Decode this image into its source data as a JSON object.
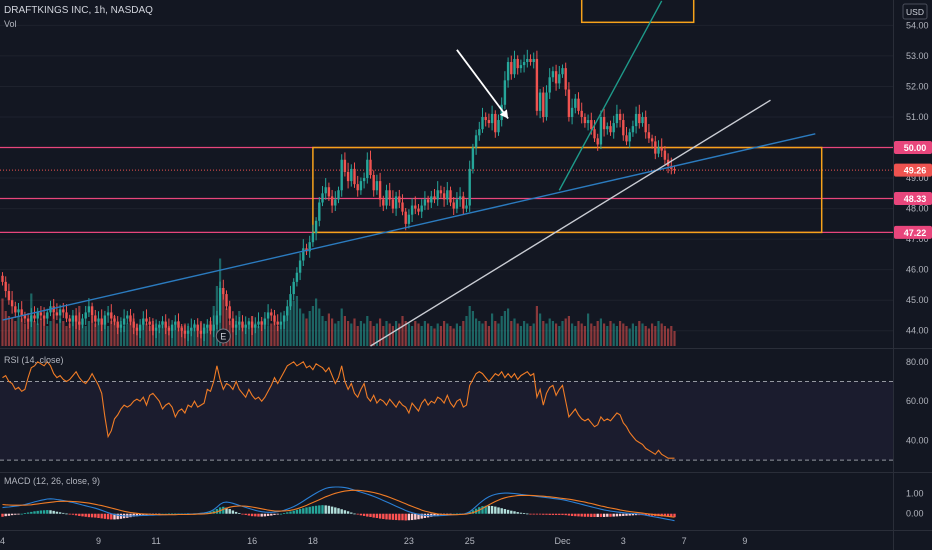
{
  "header": {
    "symbol_line": "DRAFTKINGS INC, 1h, NASDAQ",
    "volume_label": "Vol"
  },
  "currency": "USD",
  "colors": {
    "bg": "#131722",
    "up": "#26a69a",
    "down": "#ef5350",
    "trend_blue": "#2b7bbf",
    "trend_white": "#c9ccd3",
    "channel_teal": "#1e9a8a",
    "box_orange": "#f7a21b",
    "level_pink": "#e8467c",
    "rsi_line": "#f07c26",
    "macd_line": "#2a7fd4",
    "signal_line": "#f07c26"
  },
  "chart_data": [
    {
      "type": "candlestick",
      "symbol": "DRAFTKINGS INC",
      "interval": "1h",
      "exchange": "NASDAQ",
      "y_axis": {
        "min": 43.5,
        "max": 54.7,
        "ticks": [
          44.0,
          45.0,
          46.0,
          47.0,
          48.0,
          49.0,
          50.0,
          51.0,
          52.0,
          53.0,
          54.0
        ],
        "tick_labels": [
          "44.00",
          "45.00",
          "46.00",
          "47.00",
          "48.00",
          "49.00",
          "50.00",
          "51.00",
          "52.00",
          "53.00",
          "54.00"
        ]
      },
      "x_axis": {
        "tick_labels": [
          "4",
          "9",
          "11",
          "16",
          "18",
          "23",
          "25",
          "Dec",
          "3",
          "7",
          "9"
        ],
        "tick_bars": [
          0,
          30,
          48,
          78,
          97,
          127,
          146,
          175,
          194,
          213,
          232
        ]
      },
      "closes": [
        45.6,
        45.3,
        45.0,
        44.8,
        44.6,
        44.7,
        44.5,
        44.4,
        44.3,
        44.5,
        44.4,
        44.6,
        44.5,
        44.4,
        44.6,
        44.8,
        44.6,
        44.5,
        44.7,
        44.6,
        44.4,
        44.3,
        44.5,
        44.3,
        44.2,
        44.4,
        44.6,
        44.8,
        44.5,
        44.3,
        44.4,
        44.2,
        44.5,
        44.6,
        44.4,
        44.3,
        44.1,
        44.2,
        44.4,
        44.5,
        44.3,
        44.1,
        44.0,
        44.2,
        44.4,
        44.3,
        44.2,
        44.0,
        44.1,
        44.2,
        44.3,
        44.1,
        44.0,
        44.2,
        44.3,
        44.1,
        44.0,
        43.9,
        44.0,
        44.1,
        44.2,
        44.0,
        43.9,
        44.1,
        44.2,
        44.0,
        44.2,
        44.5,
        45.4,
        45.2,
        44.8,
        44.4,
        44.1,
        44.2,
        44.3,
        44.1,
        44.2,
        44.3,
        44.1,
        44.2,
        44.3,
        44.2,
        44.4,
        44.6,
        44.5,
        44.3,
        44.2,
        44.3,
        44.5,
        44.8,
        45.2,
        45.6,
        45.9,
        46.3,
        46.7,
        46.6,
        46.9,
        47.2,
        47.6,
        48.2,
        48.5,
        48.7,
        48.4,
        48.1,
        48.3,
        48.6,
        49.6,
        49.2,
        48.9,
        49.3,
        48.8,
        48.6,
        48.9,
        49.0,
        49.6,
        49.1,
        48.6,
        48.9,
        48.3,
        48.1,
        48.6,
        48.3,
        48.0,
        48.4,
        48.2,
        47.9,
        47.5,
        47.8,
        48.1,
        48.0,
        47.9,
        48.1,
        48.3,
        48.2,
        48.4,
        48.3,
        48.6,
        48.5,
        48.3,
        48.6,
        48.2,
        48.0,
        48.3,
        48.4,
        48.0,
        48.1,
        49.3,
        50.0,
        50.4,
        50.6,
        51.0,
        50.9,
        50.8,
        51.1,
        50.5,
        50.9,
        51.4,
        52.2,
        52.8,
        52.4,
        52.9,
        52.6,
        52.7,
        52.8,
        52.9,
        52.8,
        52.9,
        51.2,
        51.8,
        51.0,
        51.8,
        52.3,
        52.5,
        52.1,
        52.4,
        52.6,
        51.9,
        51.0,
        51.3,
        51.6,
        51.2,
        51.0,
        50.8,
        50.9,
        50.6,
        50.3,
        50.1,
        51.0,
        50.6,
        50.7,
        50.5,
        50.8,
        51.1,
        50.9,
        50.4,
        50.2,
        50.5,
        50.7,
        51.1,
        50.8,
        51.0,
        50.5,
        50.3,
        50.2,
        49.8,
        50.0,
        49.9,
        49.6,
        49.4,
        49.3,
        49.26
      ],
      "volumes": [
        1.9,
        1.4,
        1.2,
        1.1,
        1.0,
        1.2,
        1.1,
        0.9,
        1.0,
        2.1,
        1.0,
        0.9,
        1.1,
        1.2,
        0.8,
        1.0,
        1.3,
        0.9,
        1.1,
        1.0,
        0.8,
        0.9,
        1.0,
        1.1,
        1.6,
        0.9,
        0.8,
        1.0,
        1.2,
        0.9,
        1.0,
        1.1,
        0.9,
        0.8,
        1.0,
        1.2,
        0.9,
        1.0,
        0.8,
        0.9,
        1.0,
        1.1,
        0.9,
        0.8,
        1.0,
        0.9,
        0.8,
        1.0,
        0.9,
        0.8,
        1.0,
        0.9,
        0.8,
        0.7,
        0.9,
        1.0,
        0.8,
        0.9,
        0.8,
        0.7,
        0.9,
        0.8,
        1.0,
        0.9,
        0.8,
        1.0,
        1.6,
        2.4,
        3.5,
        2.2,
        1.5,
        1.0,
        0.9,
        1.0,
        1.4,
        0.9,
        0.8,
        1.0,
        1.2,
        0.9,
        0.8,
        1.0,
        0.9,
        0.8,
        0.9,
        1.0,
        0.8,
        0.9,
        1.2,
        1.4,
        1.7,
        1.8,
        2.0,
        1.5,
        1.3,
        1.1,
        1.4,
        1.6,
        1.9,
        1.5,
        1.2,
        1.0,
        1.3,
        1.1,
        0.9,
        1.0,
        1.5,
        1.2,
        1.0,
        0.9,
        1.1,
        0.8,
        1.0,
        0.9,
        1.2,
        1.0,
        0.8,
        0.9,
        1.1,
        0.8,
        1.0,
        0.9,
        0.8,
        1.0,
        0.9,
        1.2,
        1.0,
        0.9,
        0.8,
        1.0,
        0.9,
        0.8,
        1.0,
        0.9,
        0.8,
        0.7,
        0.9,
        0.8,
        1.0,
        0.9,
        0.8,
        0.7,
        0.9,
        0.8,
        1.0,
        1.2,
        1.6,
        1.4,
        1.1,
        1.0,
        0.9,
        1.0,
        0.8,
        1.3,
        1.0,
        0.9,
        1.2,
        1.4,
        1.5,
        1.0,
        1.1,
        0.9,
        0.8,
        1.0,
        0.9,
        0.8,
        0.9,
        1.6,
        1.3,
        1.0,
        0.9,
        1.1,
        1.0,
        0.9,
        0.8,
        1.0,
        1.1,
        1.2,
        0.9,
        0.8,
        1.0,
        0.9,
        0.8,
        1.3,
        0.9,
        0.8,
        1.0,
        1.1,
        0.9,
        0.8,
        1.0,
        0.9,
        0.8,
        1.0,
        0.9,
        0.8,
        0.7,
        0.9,
        0.8,
        1.0,
        0.9,
        0.8,
        0.7,
        0.9,
        0.8,
        1.0,
        0.9,
        0.8,
        0.7,
        0.8,
        0.6
      ],
      "horizontal_levels": [
        {
          "value": 50.0,
          "label": "50.00"
        },
        {
          "value": 48.33,
          "label": "48.33"
        },
        {
          "value": 47.22,
          "label": "47.22"
        }
      ],
      "last_price": {
        "value": 49.26,
        "label": "49.26"
      },
      "rectangles": [
        {
          "bar_start": 97,
          "bar_end": 256,
          "price_top": 50.0,
          "price_bottom": 47.22
        },
        {
          "bar_start": 181,
          "bar_end": 216,
          "price_top": 55.0,
          "price_bottom": 54.1
        }
      ],
      "trendlines": [
        {
          "name": "blue",
          "from": {
            "bar": 0,
            "price": 44.35
          },
          "to": {
            "bar": 254,
            "price": 50.45
          }
        },
        {
          "name": "white",
          "from": {
            "bar": 115,
            "price": 43.5
          },
          "to": {
            "bar": 240,
            "price": 51.55
          }
        },
        {
          "name": "teal",
          "from": {
            "bar": 174,
            "price": 48.6
          },
          "to": {
            "bar": 206,
            "price": 54.8
          }
        },
        {
          "name": "arrow",
          "from": {
            "bar": 142,
            "price": 53.2
          },
          "to": {
            "bar": 158,
            "price": 50.95
          }
        }
      ],
      "earnings_marker": {
        "bar": 69,
        "price": 43.8,
        "label": "E"
      }
    },
    {
      "type": "line",
      "title": "RSI (14, close)",
      "y_axis": {
        "min": 25,
        "max": 85,
        "ticks": [
          40,
          60,
          80
        ],
        "tick_labels": [
          "40.00",
          "60.00",
          "80.00"
        ]
      },
      "bands": {
        "upper": 70,
        "lower": 30
      },
      "values": [
        72,
        73,
        70,
        69,
        66,
        67,
        65,
        66,
        72,
        77,
        78,
        80,
        79,
        78,
        80,
        78,
        74,
        72,
        73,
        71,
        70,
        71,
        73,
        75,
        72,
        70,
        69,
        71,
        74,
        71,
        68,
        64,
        52,
        42,
        45,
        51,
        53,
        56,
        58,
        57,
        58,
        60,
        61,
        60,
        62,
        58,
        63,
        64,
        62,
        60,
        56,
        58,
        59,
        57,
        52,
        55,
        56,
        54,
        58,
        57,
        60,
        57,
        58,
        59,
        66,
        65,
        70,
        78,
        71,
        66,
        69,
        68,
        66,
        70,
        66,
        64,
        62,
        66,
        63,
        61,
        62,
        60,
        62,
        65,
        68,
        72,
        69,
        72,
        75,
        78,
        79,
        80,
        78,
        79,
        80,
        77,
        78,
        76,
        79,
        78,
        77,
        75,
        77,
        73,
        69,
        72,
        78,
        70,
        66,
        69,
        64,
        62,
        66,
        69,
        62,
        60,
        63,
        59,
        61,
        60,
        58,
        61,
        59,
        57,
        60,
        58,
        57,
        54,
        59,
        57,
        55,
        59,
        61,
        58,
        60,
        59,
        62,
        61,
        59,
        63,
        59,
        57,
        60,
        61,
        57,
        58,
        68,
        71,
        74,
        75,
        74,
        72,
        70,
        72,
        74,
        73,
        75,
        72,
        74,
        72,
        74,
        71,
        73,
        74,
        75,
        73,
        74,
        62,
        66,
        58,
        64,
        67,
        68,
        63,
        66,
        68,
        60,
        52,
        54,
        56,
        53,
        51,
        50,
        51,
        49,
        47,
        48,
        52,
        50,
        51,
        50,
        52,
        54,
        53,
        49,
        47,
        44,
        42,
        40,
        39,
        38,
        36,
        35,
        34,
        33,
        35,
        33,
        32,
        31,
        31,
        31
      ]
    },
    {
      "type": "line",
      "title": "MACD (12, 26, close, 9)",
      "y_axis": {
        "min": -0.7,
        "max": 1.85,
        "ticks": [
          0,
          1
        ],
        "tick_labels": [
          "0.00",
          "1.00"
        ]
      },
      "series": [
        {
          "name": "MACD",
          "values": [
            0.3,
            0.32,
            0.33,
            0.35,
            0.37,
            0.39,
            0.42,
            0.45,
            0.49,
            0.53,
            0.58,
            0.62,
            0.66,
            0.69,
            0.72,
            0.73,
            0.72,
            0.7,
            0.68,
            0.65,
            0.62,
            0.58,
            0.55,
            0.51,
            0.47,
            0.43,
            0.39,
            0.35,
            0.31,
            0.27,
            0.22,
            0.17,
            0.11,
            0.05,
            0.0,
            -0.04,
            -0.07,
            -0.09,
            -0.1,
            -0.11,
            -0.11,
            -0.1,
            -0.1,
            -0.09,
            -0.08,
            -0.08,
            -0.07,
            -0.07,
            -0.06,
            -0.06,
            -0.05,
            -0.05,
            -0.04,
            -0.04,
            -0.04,
            -0.03,
            -0.03,
            -0.03,
            -0.02,
            -0.02,
            -0.01,
            0.0,
            0.02,
            0.04,
            0.07,
            0.12,
            0.2,
            0.32,
            0.46,
            0.55,
            0.57,
            0.55,
            0.51,
            0.46,
            0.41,
            0.36,
            0.31,
            0.26,
            0.21,
            0.17,
            0.13,
            0.1,
            0.08,
            0.07,
            0.07,
            0.08,
            0.1,
            0.13,
            0.17,
            0.22,
            0.28,
            0.35,
            0.43,
            0.52,
            0.62,
            0.72,
            0.82,
            0.92,
            1.01,
            1.1,
            1.18,
            1.24,
            1.28,
            1.3,
            1.31,
            1.31,
            1.3,
            1.28,
            1.25,
            1.21,
            1.16,
            1.11,
            1.06,
            1.01,
            0.96,
            0.91,
            0.85,
            0.79,
            0.72,
            0.65,
            0.58,
            0.51,
            0.44,
            0.37,
            0.3,
            0.23,
            0.16,
            0.1,
            0.05,
            0.01,
            -0.03,
            -0.06,
            -0.08,
            -0.09,
            -0.1,
            -0.1,
            -0.1,
            -0.09,
            -0.08,
            -0.07,
            -0.06,
            -0.05,
            -0.04,
            -0.03,
            -0.02,
            0.02,
            0.1,
            0.22,
            0.36,
            0.5,
            0.63,
            0.74,
            0.83,
            0.9,
            0.95,
            0.98,
            1.0,
            1.01,
            1.01,
            1.0,
            0.99,
            0.97,
            0.95,
            0.93,
            0.91,
            0.89,
            0.87,
            0.85,
            0.83,
            0.81,
            0.79,
            0.77,
            0.75,
            0.73,
            0.71,
            0.69,
            0.66,
            0.62,
            0.58,
            0.54,
            0.5,
            0.46,
            0.42,
            0.38,
            0.34,
            0.3,
            0.26,
            0.22,
            0.19,
            0.16,
            0.13,
            0.11,
            0.09,
            0.07,
            0.05,
            0.03,
            0.02,
            0.01,
            0.0,
            -0.02,
            -0.04,
            -0.07,
            -0.1,
            -0.13,
            -0.16,
            -0.19,
            -0.22,
            -0.25,
            -0.28,
            -0.31,
            -0.34
          ]
        },
        {
          "name": "Signal",
          "values": [
            0.45,
            0.44,
            0.43,
            0.42,
            0.42,
            0.42,
            0.42,
            0.42,
            0.43,
            0.44,
            0.46,
            0.48,
            0.5,
            0.52,
            0.54,
            0.56,
            0.58,
            0.6,
            0.61,
            0.61,
            0.61,
            0.61,
            0.6,
            0.59,
            0.58,
            0.56,
            0.54,
            0.52,
            0.49,
            0.46,
            0.43,
            0.4,
            0.36,
            0.32,
            0.28,
            0.24,
            0.2,
            0.16,
            0.12,
            0.09,
            0.06,
            0.04,
            0.02,
            0.0,
            -0.01,
            -0.02,
            -0.03,
            -0.04,
            -0.04,
            -0.05,
            -0.05,
            -0.05,
            -0.05,
            -0.05,
            -0.05,
            -0.04,
            -0.04,
            -0.04,
            -0.04,
            -0.03,
            -0.03,
            -0.02,
            -0.02,
            -0.01,
            0.0,
            0.02,
            0.05,
            0.09,
            0.15,
            0.21,
            0.27,
            0.32,
            0.35,
            0.37,
            0.38,
            0.38,
            0.37,
            0.35,
            0.33,
            0.3,
            0.27,
            0.24,
            0.21,
            0.18,
            0.16,
            0.14,
            0.13,
            0.13,
            0.14,
            0.15,
            0.17,
            0.2,
            0.24,
            0.29,
            0.35,
            0.41,
            0.48,
            0.55,
            0.62,
            0.69,
            0.76,
            0.83,
            0.89,
            0.95,
            1.0,
            1.04,
            1.08,
            1.11,
            1.13,
            1.15,
            1.15,
            1.15,
            1.14,
            1.12,
            1.1,
            1.07,
            1.04,
            1.0,
            0.96,
            0.91,
            0.86,
            0.8,
            0.74,
            0.68,
            0.62,
            0.55,
            0.49,
            0.42,
            0.36,
            0.3,
            0.24,
            0.18,
            0.13,
            0.09,
            0.05,
            0.02,
            -0.01,
            -0.03,
            -0.04,
            -0.05,
            -0.05,
            -0.05,
            -0.05,
            -0.04,
            -0.03,
            -0.02,
            0.01,
            0.05,
            0.11,
            0.18,
            0.26,
            0.35,
            0.44,
            0.52,
            0.6,
            0.67,
            0.73,
            0.78,
            0.82,
            0.85,
            0.87,
            0.89,
            0.9,
            0.9,
            0.9,
            0.9,
            0.89,
            0.88,
            0.87,
            0.86,
            0.84,
            0.83,
            0.81,
            0.79,
            0.77,
            0.75,
            0.73,
            0.71,
            0.69,
            0.66,
            0.63,
            0.6,
            0.57,
            0.53,
            0.5,
            0.46,
            0.42,
            0.38,
            0.35,
            0.31,
            0.28,
            0.25,
            0.22,
            0.19,
            0.16,
            0.13,
            0.11,
            0.09,
            0.07,
            0.05,
            0.03,
            0.01,
            -0.01,
            -0.03,
            -0.05,
            -0.07,
            -0.09,
            -0.11,
            -0.13,
            -0.15,
            -0.17
          ]
        }
      ]
    }
  ]
}
